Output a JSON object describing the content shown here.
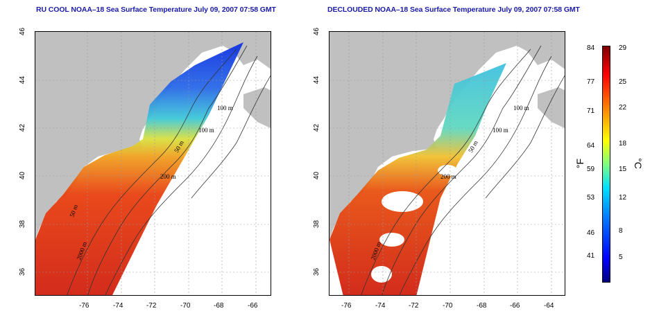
{
  "titles": {
    "left": "RU COOL NOAA–18 Sea Surface Temperature July 09, 2007 07:58 GMT",
    "right": "DECLOUDED NOAA–18 Sea Surface Temperature July 09, 2007 07:58 GMT"
  },
  "axes": {
    "lat_ticks": [
      "46",
      "44",
      "42",
      "40",
      "38",
      "36"
    ],
    "lon_ticks": [
      "-76",
      "-74",
      "-72",
      "-70",
      "-68",
      "-66",
      "-64"
    ]
  },
  "contours": {
    "left": [
      "100 m",
      "100 m",
      "50 m",
      "200 m",
      "50 m",
      "2000 m"
    ],
    "right": [
      "100 m",
      "100 m",
      "50 m",
      "200 m",
      "2000 m"
    ]
  },
  "colorbar": {
    "fahrenheit_labels": [
      "84",
      "77",
      "71",
      "64",
      "59",
      "53",
      "46",
      "41"
    ],
    "celsius_labels": [
      "29",
      "25",
      "22",
      "18",
      "15",
      "12",
      "8",
      "5"
    ],
    "unit_f": "°F",
    "unit_c": "°C"
  },
  "colors": {
    "land": "#c0c0c0",
    "title": "#1a1aa8",
    "grid": "#9a9a9a"
  }
}
